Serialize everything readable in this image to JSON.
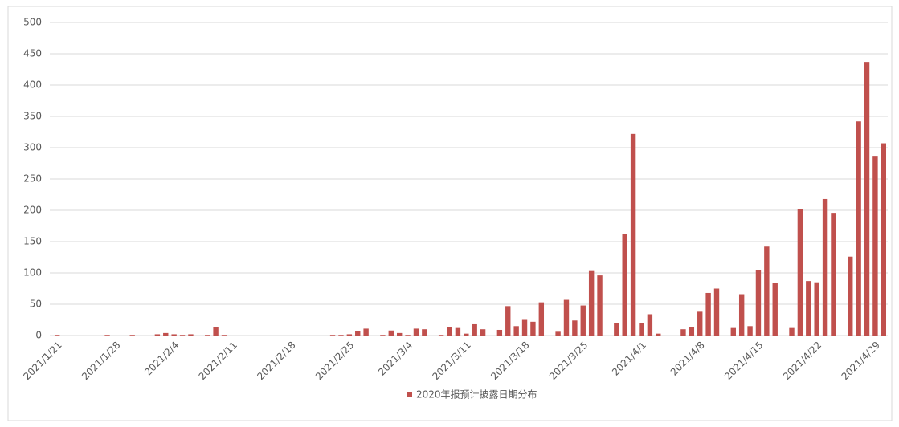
{
  "chart_data": {
    "type": "bar",
    "categories": [
      "2021/1/21",
      null,
      null,
      null,
      null,
      null,
      null,
      "2021/1/28",
      null,
      null,
      null,
      null,
      null,
      null,
      "2021/2/4",
      null,
      null,
      null,
      null,
      null,
      null,
      "2021/2/11",
      null,
      null,
      null,
      null,
      null,
      null,
      "2021/2/18",
      null,
      null,
      null,
      null,
      null,
      null,
      "2021/2/25",
      null,
      null,
      null,
      null,
      null,
      null,
      "2021/3/4",
      null,
      null,
      null,
      null,
      null,
      null,
      "2021/3/11",
      null,
      null,
      null,
      null,
      null,
      null,
      "2021/3/18",
      null,
      null,
      null,
      null,
      null,
      null,
      "2021/3/25",
      null,
      null,
      null,
      null,
      null,
      null,
      "2021/4/1",
      null,
      null,
      null,
      null,
      null,
      null,
      "2021/4/8",
      null,
      null,
      null,
      null,
      null,
      null,
      "2021/4/15",
      null,
      null,
      null,
      null,
      null,
      null,
      "2021/4/22",
      null,
      null,
      null,
      null,
      null,
      null,
      "2021/4/29",
      null
    ],
    "series": [
      {
        "name": "2020年报预计披露日期分布",
        "color": "#c0504d",
        "values": [
          1,
          0,
          0,
          0,
          0,
          0,
          1,
          0,
          0,
          1,
          0,
          0,
          2,
          4,
          2,
          1,
          2,
          0,
          1,
          14,
          1,
          0,
          0,
          0,
          0,
          0,
          0,
          0,
          0,
          0,
          0,
          0,
          0,
          1,
          1,
          2,
          7,
          11,
          0,
          1,
          8,
          4,
          1,
          11,
          10,
          0,
          1,
          14,
          12,
          3,
          18,
          10,
          0,
          9,
          47,
          15,
          25,
          22,
          53,
          0,
          6,
          57,
          24,
          48,
          103,
          96,
          0,
          20,
          162,
          322,
          20,
          34,
          3,
          0,
          0,
          10,
          14,
          38,
          68,
          75,
          0,
          12,
          66,
          15,
          105,
          142,
          84,
          0,
          12,
          202,
          87,
          85,
          218,
          196,
          0,
          126,
          342,
          437,
          287,
          307
        ]
      }
    ],
    "ylim": [
      0,
      500
    ],
    "yticks": [
      0,
      50,
      100,
      150,
      200,
      250,
      300,
      350,
      400,
      450,
      500
    ],
    "grid": true,
    "legend": "bottom"
  }
}
